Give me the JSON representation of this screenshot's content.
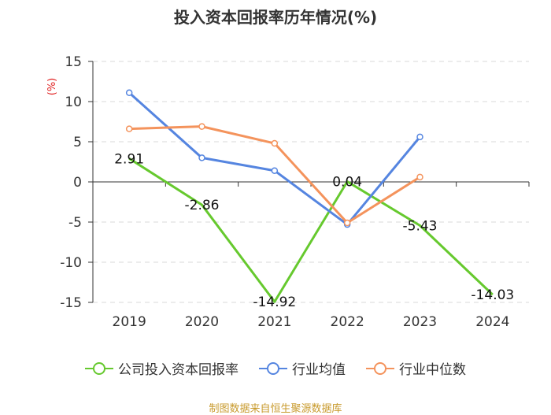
{
  "chart_data": {
    "type": "line",
    "title": "投入资本回报率历年情况(%)",
    "ylabel": "(%)",
    "xlabel": "",
    "categories": [
      "2019",
      "2020",
      "2021",
      "2022",
      "2023",
      "2024"
    ],
    "ylim": [
      -15,
      15
    ],
    "yticks": [
      15,
      10,
      5,
      0,
      -5,
      -10,
      -15
    ],
    "grid": true,
    "legend_position": "bottom",
    "series": [
      {
        "name": "公司投入资本回报率",
        "color": "#66c92e",
        "values": [
          2.91,
          -2.86,
          -14.92,
          0.04,
          -5.43,
          -14.03
        ],
        "labels": [
          "2.91",
          "-2.86",
          "-14.92",
          "0.04",
          "-5.43",
          "-14.03"
        ],
        "show_markers": false
      },
      {
        "name": "行业均值",
        "color": "#5585e0",
        "values": [
          11.1,
          3.0,
          1.4,
          -5.3,
          5.6,
          null
        ],
        "show_markers": true
      },
      {
        "name": "行业中位数",
        "color": "#f4935c",
        "values": [
          6.6,
          6.9,
          4.8,
          -5.1,
          0.6,
          null
        ],
        "show_markers": true
      }
    ]
  },
  "source": "制图数据来自恒生聚源数据库"
}
